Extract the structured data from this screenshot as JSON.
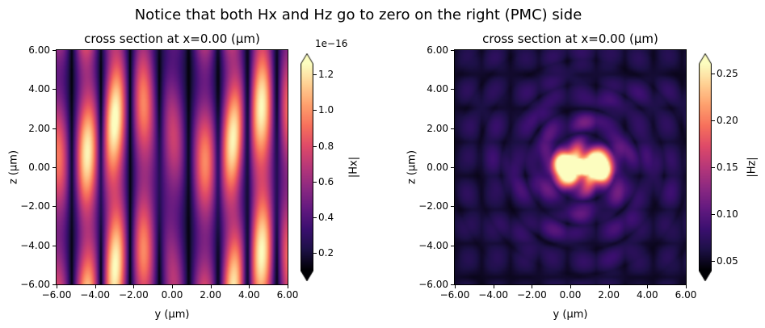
{
  "figure": {
    "title": "Notice that both Hx and Hz go to zero on the right (PMC) side",
    "background": "#ffffff"
  },
  "chart_data": [
    {
      "type": "heatmap",
      "title": "cross section at x=0.00 (µm)",
      "xlabel": "y (µm)",
      "ylabel": "z (µm)",
      "x_range": [
        -6,
        6
      ],
      "y_range": [
        -6,
        6
      ],
      "xticks": [
        "−6.00",
        "−4.00",
        "−2.00",
        "0.00",
        "2.00",
        "4.00",
        "6.00"
      ],
      "yticks": [
        "6.00",
        "4.00",
        "2.00",
        "0.00",
        "−2.00",
        "−4.00",
        "−6.00"
      ],
      "colormap": "magma",
      "grid": false,
      "colorbar": {
        "label": "|Hx|",
        "offset_text": "1e−16",
        "ticks": [
          0.2,
          0.4,
          0.6,
          0.8,
          1.0,
          1.2
        ],
        "tick_labels": [
          "0.2",
          "0.4",
          "0.6",
          "0.8",
          "1.0",
          "1.2"
        ],
        "range": [
          0.1,
          1.26
        ],
        "scale_factor": 1e-16,
        "extend": "both"
      },
      "pattern": "Vertical standing-wave interference stripes of |Hx| spanning the full z range; brightest near-white bands around y≈−3.3, y≈−2.3 and y≈+2.7…+4.5, dim dark-purple gaps between them; peak magnitude ≈1.3e−16 (numerically zero field).",
      "synthesis": {
        "kind": "stripes",
        "vmax": 0.98,
        "stripe_k": 2.05,
        "stripe_phase": 1.35,
        "amp_k": 0.42,
        "amp_x0": 0.3,
        "zmod_k": 0.8
      }
    },
    {
      "type": "heatmap",
      "title": "cross section at x=0.00 (µm)",
      "xlabel": "y (µm)",
      "ylabel": "z (µm)",
      "x_range": [
        -6,
        6
      ],
      "y_range": [
        -6,
        6
      ],
      "xticks": [
        "−6.00",
        "−4.00",
        "−2.00",
        "0.00",
        "2.00",
        "4.00",
        "6.00"
      ],
      "yticks": [
        "6.00",
        "4.00",
        "2.00",
        "0.00",
        "−2.00",
        "−4.00",
        "−6.00"
      ],
      "colormap": "magma",
      "grid": false,
      "colorbar": {
        "label": "|Hz|",
        "ticks": [
          0.05,
          0.1,
          0.15,
          0.2,
          0.25
        ],
        "tick_labels": [
          "0.05",
          "0.10",
          "0.15",
          "0.20",
          "0.25"
        ],
        "range": [
          0.04,
          0.26
        ],
        "extend": "both"
      },
      "pattern": "Bright saturated double-lobed focus of |Hz| centered near (y≈0…1.5, z≈0) surrounded by concentric diffraction rings and speckled fringes fading to near-black toward the plot edges; peak >0.25.",
      "synthesis": {
        "kind": "rings",
        "vmax": 1.0,
        "lobe_centers": [
          -0.1,
          1.4
        ],
        "ring_center": 0.65,
        "ring_k": 2.5
      }
    }
  ]
}
